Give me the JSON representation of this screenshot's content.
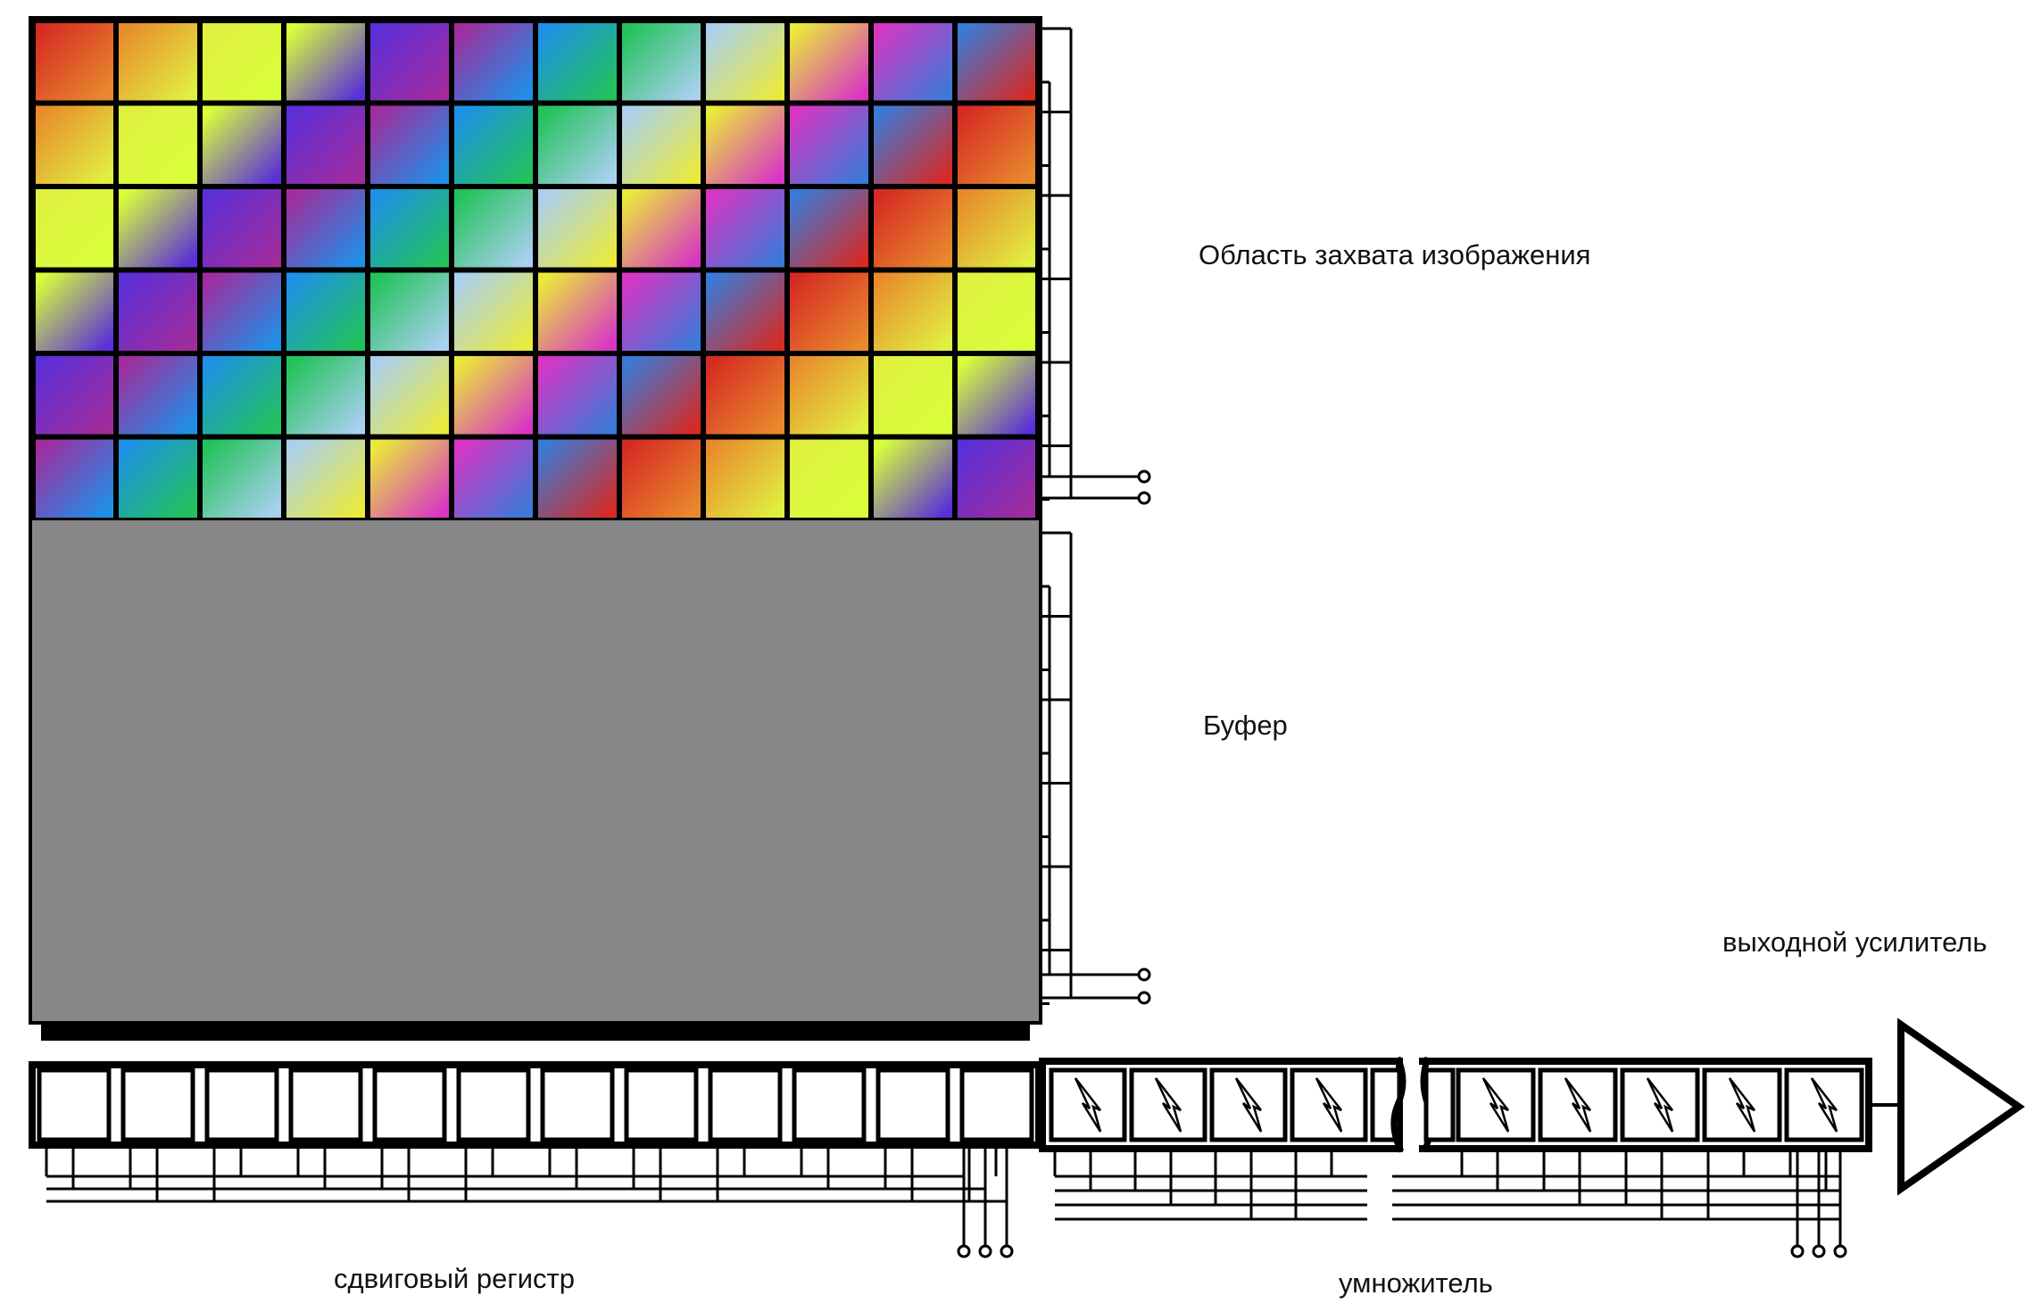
{
  "labels": {
    "capture_area": "Область захвата изображения",
    "buffer": "Буфер",
    "shift_register": "сдвиговый регистр",
    "multiplier": "умножитель",
    "output_amplifier": "выходной усилитель"
  },
  "grid": {
    "columns": 12,
    "capture_rows": 6,
    "buffer_rows": 6,
    "shift_register_cells": 12,
    "multiplier_cells_left": 4,
    "multiplier_cells_right": 5
  },
  "colors": {
    "buffer_fill": "#888888",
    "line": "#000000",
    "background": "#ffffff",
    "palette": [
      "#d62a24",
      "#e88a2c",
      "#e0f040",
      "#d8ff3a",
      "#5a2fd8",
      "#a22c9c",
      "#1e90e8",
      "#22c25a",
      "#aad0f0",
      "#eaea3a",
      "#d835c4",
      "#3a7ad8"
    ]
  }
}
